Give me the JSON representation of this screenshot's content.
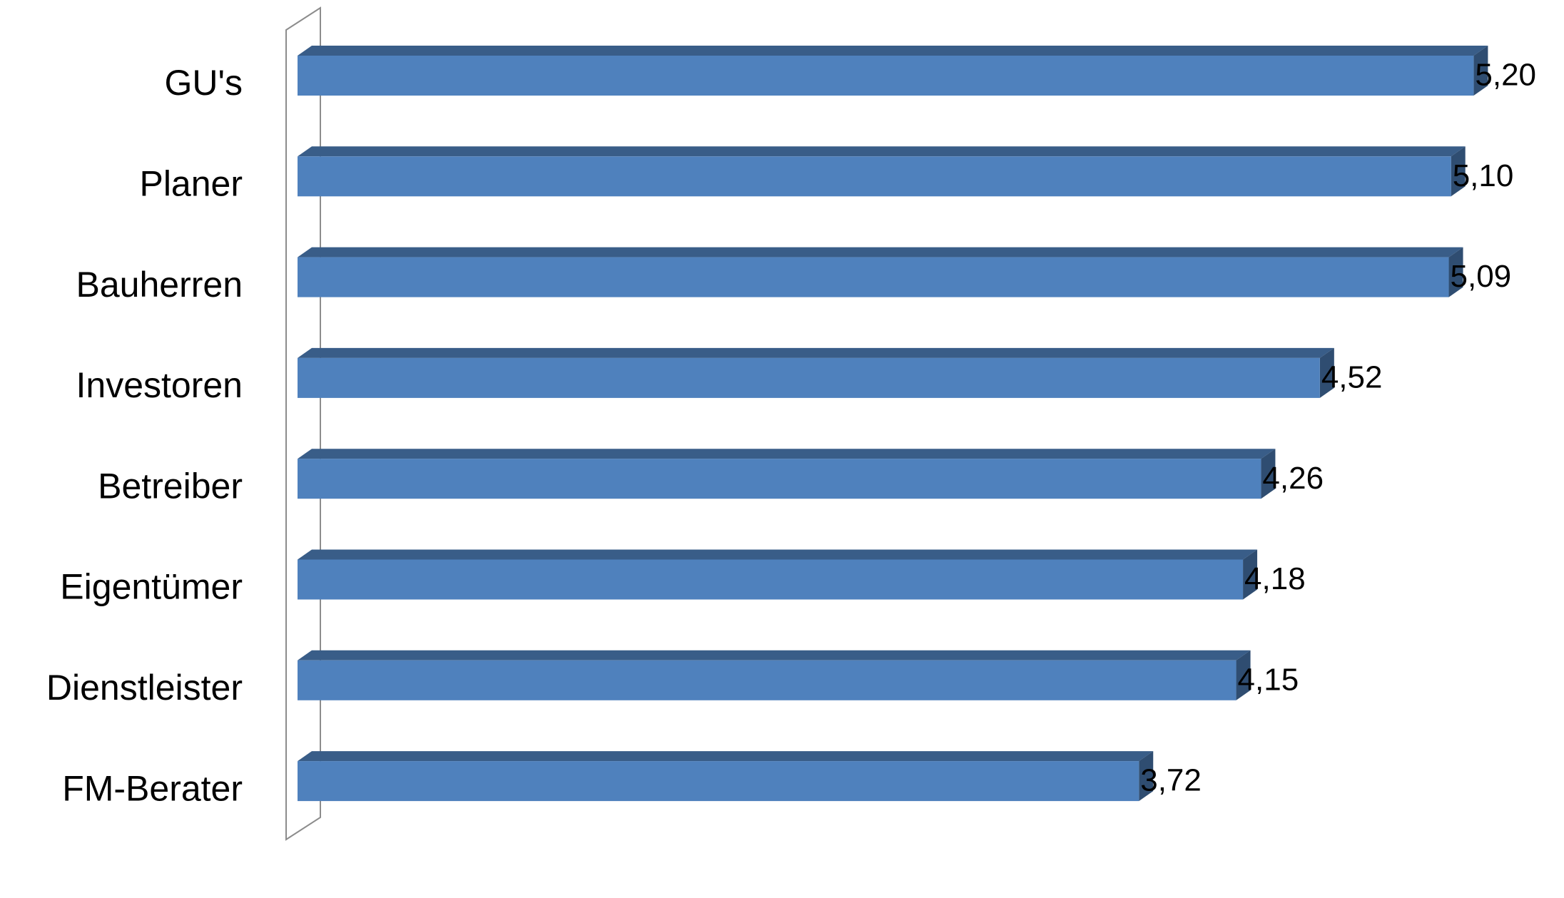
{
  "chart_data": {
    "type": "bar",
    "orientation": "horizontal",
    "categories": [
      "GU's",
      "Planer",
      "Bauherren",
      "Investoren",
      "Betreiber",
      "Eigentümer",
      "Dienstleister",
      "FM-Berater"
    ],
    "values": [
      5.2,
      5.1,
      5.09,
      4.52,
      4.26,
      4.18,
      4.15,
      3.72
    ],
    "value_labels": [
      "5,20",
      "5,10",
      "5,09",
      "4,52",
      "4,26",
      "4,18",
      "4,15",
      "3,72"
    ],
    "color": "#4f81bd"
  }
}
